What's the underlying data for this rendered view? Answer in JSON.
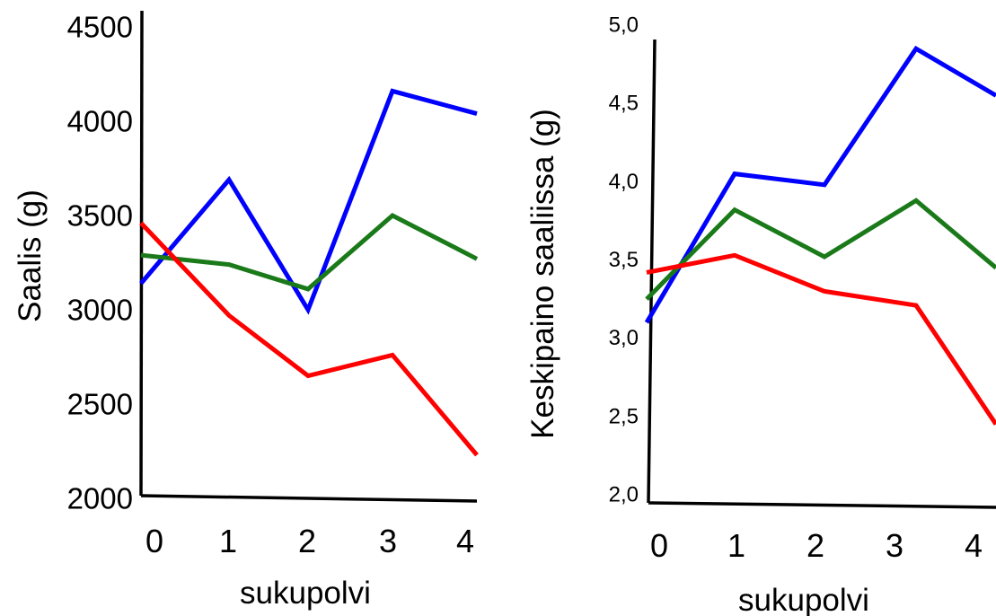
{
  "colors": {
    "blue": "#0000ff",
    "green": "#1a7a1a",
    "red": "#ff0000",
    "axis": "#000000"
  },
  "chart_data": [
    {
      "type": "line",
      "xlabel": "sukupolvi",
      "ylabel": "Saalis (g)",
      "categories": [
        "0",
        "1",
        "2",
        "3",
        "4"
      ],
      "x": [
        0,
        1,
        2,
        3,
        4
      ],
      "ylim": [
        2000,
        4500
      ],
      "yticks": [
        2000,
        2500,
        3000,
        3500,
        4000,
        4500
      ],
      "ytick_labels": [
        "2000",
        "2500",
        "3000",
        "3500",
        "4000",
        "4500"
      ],
      "series": [
        {
          "color": "blue",
          "values": [
            3140,
            3690,
            3000,
            4160,
            4040
          ]
        },
        {
          "color": "green",
          "values": [
            3290,
            3240,
            3110,
            3500,
            3270
          ]
        },
        {
          "color": "red",
          "values": [
            3460,
            2970,
            2650,
            2760,
            2230
          ]
        }
      ]
    },
    {
      "type": "line",
      "xlabel": "sukupolvi",
      "ylabel": "Keskipaino saaliissa (g)",
      "categories": [
        "0",
        "1",
        "2",
        "3",
        "4"
      ],
      "x": [
        0,
        1,
        2,
        3,
        4
      ],
      "ylim": [
        2.0,
        5.0
      ],
      "yticks": [
        2.0,
        2.5,
        3.0,
        3.5,
        4.0,
        4.5,
        5.0
      ],
      "ytick_labels": [
        "2,0",
        "2,5",
        "3,0",
        "3,5",
        "4,0",
        "4,5",
        "5,0"
      ],
      "series": [
        {
          "color": "blue",
          "values": [
            3.1,
            4.05,
            3.98,
            4.85,
            4.55
          ]
        },
        {
          "color": "green",
          "values": [
            3.25,
            3.82,
            3.52,
            3.88,
            3.45
          ]
        },
        {
          "color": "red",
          "values": [
            3.42,
            3.53,
            3.3,
            3.21,
            2.45
          ]
        }
      ]
    }
  ]
}
